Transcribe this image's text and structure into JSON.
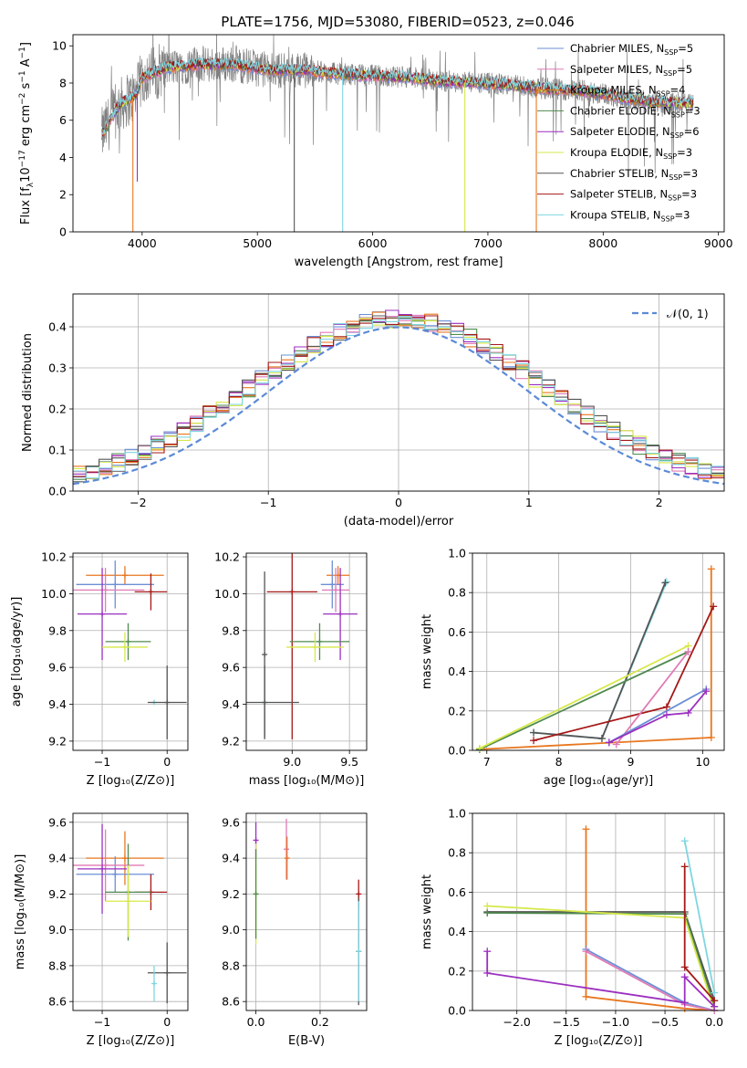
{
  "figure": {
    "title": "PLATE=1756, MJD=53080, FIBERID=0523, z=0.046"
  },
  "colors": {
    "Chabrier MILES": "#6b8fd6",
    "Salpeter MILES": "#e07bb5",
    "Kroupa MILES": "#e8771f",
    "Chabrier ELODIE": "#4f8a4f",
    "Salpeter ELODIE": "#9b2fc0",
    "Kroupa ELODIE": "#d6e84a",
    "Chabrier STELIB": "#555555",
    "Salpeter STELIB": "#a51818",
    "Kroupa STELIB": "#7ed6e0"
  },
  "chart_data": [
    {
      "id": "spectrum",
      "type": "line",
      "title": "PLATE=1756, MJD=53080, FIBERID=0523, z=0.046",
      "xlabel": "wavelength [Angstrom, rest frame]",
      "ylabel_main": "Flux [f",
      "ylabel_sub": "λ",
      "ylabel_rest": "10",
      "ylabel_sup1": "−17",
      "ylabel_tail": " erg cm",
      "ylabel_sup2": "−2",
      "ylabel_tail2": " s",
      "ylabel_sup3": "−1",
      "ylabel_tail3": " A",
      "ylabel_sup4": "−1",
      "ylabel_end": "]",
      "xlim": [
        3400,
        9050
      ],
      "ylim": [
        0,
        10.6
      ],
      "xticks": [
        4000,
        5000,
        6000,
        7000,
        8000,
        9000
      ],
      "yticks": [
        0,
        2,
        4,
        6,
        8,
        10
      ],
      "legend_position": "upper-right",
      "legend": [
        {
          "name": "Chabrier MILES",
          "n": "5"
        },
        {
          "name": "Salpeter MILES",
          "n": "5"
        },
        {
          "name": "Kroupa MILES",
          "n": "4"
        },
        {
          "name": "Chabrier ELODIE",
          "n": "3"
        },
        {
          "name": "Salpeter ELODIE",
          "n": "6"
        },
        {
          "name": "Kroupa ELODIE",
          "n": "3"
        },
        {
          "name": "Chabrier STELIB",
          "n": "3"
        },
        {
          "name": "Salpeter STELIB",
          "n": "3"
        },
        {
          "name": "Kroupa STELIB",
          "n": "3"
        }
      ],
      "legend_suffix": "SSP",
      "data_range": [
        3650,
        8780
      ],
      "continuum": [
        [
          3650,
          5.2
        ],
        [
          3800,
          6.8
        ],
        [
          3950,
          7.4
        ],
        [
          4000,
          8.3
        ],
        [
          4200,
          8.8
        ],
        [
          4500,
          9.0
        ],
        [
          4800,
          9.0
        ],
        [
          5100,
          8.7
        ],
        [
          5400,
          8.7
        ],
        [
          5700,
          8.5
        ],
        [
          6000,
          8.4
        ],
        [
          6300,
          8.3
        ],
        [
          6600,
          8.1
        ],
        [
          6900,
          8.0
        ],
        [
          7200,
          7.9
        ],
        [
          7500,
          7.7
        ],
        [
          7800,
          7.6
        ],
        [
          8100,
          7.3
        ],
        [
          8400,
          7.0
        ],
        [
          8780,
          6.9
        ]
      ],
      "drops": [
        {
          "series": "Salpeter ELODIE",
          "x": 3958,
          "to": 2.7
        },
        {
          "series": "Kroupa MILES",
          "x": 3920,
          "to": 0
        },
        {
          "series": "Kroupa STELIB",
          "x": 5740,
          "to": 0
        },
        {
          "series": "Chabrier STELIB",
          "x": 5320,
          "to": 0
        },
        {
          "series": "Kroupa ELODIE",
          "x": 6800,
          "to": 0
        },
        {
          "series": "Kroupa MILES",
          "x": 7420,
          "to": 0
        }
      ]
    },
    {
      "id": "residuals",
      "type": "line",
      "xlabel": "(data-model)/error",
      "ylabel": "Normed distribution",
      "xlim": [
        -2.5,
        2.5
      ],
      "ylim": [
        0,
        0.48
      ],
      "xticks": [
        -2,
        -1,
        0,
        1,
        2
      ],
      "yticks": [
        0.0,
        0.1,
        0.2,
        0.3,
        0.4
      ],
      "grid": true,
      "legend_position": "upper-right",
      "reference_curve": {
        "name": "𝒩(0, 1)",
        "mean": 0,
        "sigma": 1,
        "color": "#5b8ad6"
      },
      "bin_width": 0.1
    },
    {
      "id": "age-vs-Z",
      "type": "scatter",
      "xlabel": "Z [log10(Z/Z⊙)]",
      "ylabel": "age  [log10(age/yr)]",
      "xlim": [
        -1.45,
        0.32
      ],
      "ylim": [
        9.15,
        10.22
      ],
      "xticks": [
        -1,
        0
      ],
      "yticks": [
        9.2,
        9.4,
        9.6,
        9.8,
        10.0,
        10.2
      ],
      "grid": true,
      "points": [
        {
          "series": "Kroupa MILES",
          "x": -0.65,
          "xerr": 0.6,
          "y": 10.1,
          "yerr": 0.05
        },
        {
          "series": "Chabrier MILES",
          "x": -0.8,
          "xerr": 0.6,
          "y": 10.05,
          "yerr": 0.13
        },
        {
          "series": "Salpeter MILES",
          "x": -0.95,
          "xerr": 0.6,
          "y": 10.02,
          "yerr": 0.12
        },
        {
          "series": "Salpeter STELIB",
          "x": -0.25,
          "xerr": 0.25,
          "y": 10.01,
          "yerr": 0.1
        },
        {
          "series": "Salpeter ELODIE",
          "x": -1.0,
          "xerr": 0.38,
          "y": 9.89,
          "yerr": 0.25
        },
        {
          "series": "Chabrier ELODIE",
          "x": -0.6,
          "xerr": 0.35,
          "y": 9.74,
          "yerr": 0.1
        },
        {
          "series": "Kroupa ELODIE",
          "x": -0.65,
          "xerr": 0.35,
          "y": 9.71,
          "yerr": 0.08
        },
        {
          "series": "Kroupa STELIB",
          "x": -0.2,
          "xerr": 0.0,
          "y": 9.41,
          "yerr": 0.0
        },
        {
          "series": "Chabrier STELIB",
          "x": 0.0,
          "xerr": 0.3,
          "y": 9.41,
          "yerr": 0.2
        }
      ]
    },
    {
      "id": "age-vs-mass",
      "type": "scatter",
      "xlabel": "mass [log10(M/M⊙)]",
      "ylabel": "",
      "xlim": [
        8.6,
        9.65
      ],
      "ylim": [
        9.15,
        10.22
      ],
      "xticks": [
        9.0,
        9.5
      ],
      "yticks": [
        9.2,
        9.4,
        9.6,
        9.8,
        10.0,
        10.2
      ],
      "grid": true,
      "points": [
        {
          "series": "Kroupa MILES",
          "x": 9.4,
          "xerr": 0.1,
          "y": 10.1,
          "yerr": 0.05
        },
        {
          "series": "Chabrier MILES",
          "x": 9.35,
          "xerr": 0.1,
          "y": 10.05,
          "yerr": 0.13
        },
        {
          "series": "Salpeter MILES",
          "x": 9.38,
          "xerr": 0.12,
          "y": 10.02,
          "yerr": 0.12
        },
        {
          "series": "Salpeter STELIB",
          "x": 9.0,
          "xerr": 0.22,
          "y": 10.01,
          "yerr": 0.8
        },
        {
          "series": "Salpeter ELODIE",
          "x": 9.42,
          "xerr": 0.15,
          "y": 9.89,
          "yerr": 0.25
        },
        {
          "series": "Chabrier ELODIE",
          "x": 9.24,
          "xerr": 0.26,
          "y": 9.74,
          "yerr": 0.1
        },
        {
          "series": "Kroupa ELODIE",
          "x": 9.2,
          "xerr": 0.25,
          "y": 9.71,
          "yerr": 0.08
        },
        {
          "series": "Kroupa STELIB",
          "x": 8.76,
          "xerr": 0.0,
          "y": 9.41,
          "yerr": 0.0
        },
        {
          "series": "Chabrier STELIB",
          "x": 8.76,
          "xerr": 0.3,
          "y": 9.41,
          "yerr": 0.2
        },
        {
          "series": "Chabrier STELIB",
          "x": 8.76,
          "xerr": 0.0,
          "y": 9.67,
          "yerr": 0.45
        }
      ]
    },
    {
      "id": "massweight-vs-age",
      "type": "line",
      "xlabel": "age  [log10(age/yr)]",
      "ylabel": "mass weight",
      "xlim": [
        6.8,
        10.3
      ],
      "ylim": [
        0,
        1.0
      ],
      "xticks": [
        7,
        8,
        9,
        10
      ],
      "yticks": [
        0.0,
        0.2,
        0.4,
        0.6,
        0.8,
        1.0
      ],
      "grid": true,
      "series": [
        {
          "name": "Kroupa MILES",
          "points": [
            [
              6.9,
              0.005
            ],
            [
              10.12,
              0.065
            ],
            [
              10.12,
              0.92
            ]
          ]
        },
        {
          "name": "Kroupa STELIB",
          "points": [
            [
              7.65,
              0.09
            ],
            [
              8.6,
              0.06
            ],
            [
              9.5,
              0.855
            ]
          ]
        },
        {
          "name": "Chabrier STELIB",
          "points": [
            [
              7.65,
              0.09
            ],
            [
              8.6,
              0.06
            ],
            [
              9.48,
              0.85
            ]
          ]
        },
        {
          "name": "Salpeter STELIB",
          "points": [
            [
              7.65,
              0.05
            ],
            [
              9.5,
              0.22
            ],
            [
              10.15,
              0.73
            ]
          ]
        },
        {
          "name": "Chabrier ELODIE",
          "points": [
            [
              6.9,
              0.005
            ],
            [
              9.8,
              0.5
            ]
          ]
        },
        {
          "name": "Kroupa ELODIE",
          "points": [
            [
              6.9,
              0.01
            ],
            [
              9.8,
              0.53
            ]
          ]
        },
        {
          "name": "Salpeter MILES",
          "points": [
            [
              8.8,
              0.03
            ],
            [
              9.8,
              0.5
            ]
          ]
        },
        {
          "name": "Chabrier MILES",
          "points": [
            [
              8.7,
              0.04
            ],
            [
              10.05,
              0.31
            ]
          ]
        },
        {
          "name": "Salpeter ELODIE",
          "points": [
            [
              8.7,
              0.04
            ],
            [
              9.5,
              0.18
            ],
            [
              9.8,
              0.19
            ],
            [
              10.05,
              0.3
            ]
          ]
        }
      ]
    },
    {
      "id": "mass-vs-Z",
      "type": "scatter",
      "xlabel": "Z [log10(Z/Z⊙)]",
      "ylabel": "mass [log10(M/M⊙)]",
      "xlim": [
        -1.45,
        0.32
      ],
      "ylim": [
        8.55,
        9.65
      ],
      "xticks": [
        -1,
        0
      ],
      "yticks": [
        8.6,
        8.8,
        9.0,
        9.2,
        9.4,
        9.6
      ],
      "grid": true,
      "points": [
        {
          "series": "Kroupa MILES",
          "x": -0.65,
          "xerr": 0.6,
          "y": 9.4,
          "yerr": 0.15
        },
        {
          "series": "Chabrier MILES",
          "x": -0.8,
          "xerr": 0.6,
          "y": 9.31,
          "yerr": 0.1
        },
        {
          "series": "Salpeter MILES",
          "x": -0.95,
          "xerr": 0.6,
          "y": 9.36,
          "yerr": 0.2
        },
        {
          "series": "Salpeter ELODIE",
          "x": -1.0,
          "xerr": 0.38,
          "y": 9.34,
          "yerr": 0.25
        },
        {
          "series": "Salpeter STELIB",
          "x": -0.25,
          "xerr": 0.25,
          "y": 9.21,
          "yerr": 0.1
        },
        {
          "series": "Chabrier ELODIE",
          "x": -0.6,
          "xerr": 0.35,
          "y": 9.21,
          "yerr": 0.27
        },
        {
          "series": "Kroupa ELODIE",
          "x": -0.6,
          "xerr": 0.35,
          "y": 9.16,
          "yerr": 0.2
        },
        {
          "series": "Chabrier STELIB",
          "x": 0.0,
          "xerr": 0.3,
          "y": 8.76,
          "yerr": 0.17
        },
        {
          "series": "Kroupa STELIB",
          "x": -0.2,
          "xerr": 0.0,
          "y": 8.7,
          "yerr": 0.1
        }
      ]
    },
    {
      "id": "mass-vs-EBV",
      "type": "scatter",
      "xlabel": "E(B-V)",
      "ylabel": "",
      "xlim": [
        -0.03,
        0.345
      ],
      "ylim": [
        8.55,
        9.65
      ],
      "xticks": [
        0.0,
        0.2
      ],
      "yticks": [
        8.6,
        8.8,
        9.0,
        9.2,
        9.4,
        9.6
      ],
      "grid": true,
      "points": [
        {
          "series": "Salpeter ELODIE",
          "x": 0.0,
          "xerr": 0.0,
          "y": 9.5,
          "yerr": 0.1
        },
        {
          "series": "Kroupa ELODIE",
          "x": 0.0,
          "xerr": 0.0,
          "y": 9.2,
          "yerr": 0.28
        },
        {
          "series": "Chabrier ELODIE",
          "x": 0.0,
          "xerr": 0.0,
          "y": 9.2,
          "yerr": 0.25
        },
        {
          "series": "Salpeter MILES",
          "x": 0.095,
          "xerr": 0.0,
          "y": 9.45,
          "yerr": 0.17
        },
        {
          "series": "Kroupa MILES",
          "x": 0.097,
          "xerr": 0.0,
          "y": 9.4,
          "yerr": 0.12
        },
        {
          "series": "Salpeter STELIB",
          "x": 0.32,
          "xerr": 0.0,
          "y": 9.2,
          "yerr": 0.08
        },
        {
          "series": "Chabrier STELIB",
          "x": 0.32,
          "xerr": 0.0,
          "y": 8.88,
          "yerr": 0.3
        },
        {
          "series": "Kroupa STELIB",
          "x": 0.32,
          "xerr": 0.0,
          "y": 8.88,
          "yerr": 0.28
        }
      ]
    },
    {
      "id": "massweight-vs-Z",
      "type": "line",
      "xlabel": "Z [log10(Z/Z⊙)]",
      "ylabel": "mass weight",
      "xlim": [
        -2.45,
        0.1
      ],
      "ylim": [
        0,
        1.0
      ],
      "xticks": [
        -2.0,
        -1.5,
        -1.0,
        -0.5,
        0.0
      ],
      "yticks": [
        0.0,
        0.2,
        0.4,
        0.6,
        0.8,
        1.0
      ],
      "grid": true,
      "series": [
        {
          "name": "Kroupa MILES",
          "points": [
            [
              -1.3,
              0.92
            ],
            [
              -1.3,
              0.07
            ],
            [
              -0.3,
              0.01
            ],
            [
              0.0,
              0.0
            ]
          ]
        },
        {
          "name": "Chabrier STELIB",
          "points": [
            [
              -2.3,
              0.5
            ],
            [
              -0.3,
              0.5
            ],
            [
              0.0,
              0.05
            ]
          ]
        },
        {
          "name": "Chabrier ELODIE",
          "points": [
            [
              -2.3,
              0.495
            ],
            [
              -0.3,
              0.49
            ],
            [
              0.0,
              0.02
            ]
          ]
        },
        {
          "name": "Kroupa ELODIE",
          "points": [
            [
              -2.3,
              0.53
            ],
            [
              -0.3,
              0.47
            ],
            [
              0.0,
              0.0
            ]
          ]
        },
        {
          "name": "Salpeter STELIB",
          "points": [
            [
              -0.3,
              0.73
            ],
            [
              -0.3,
              0.22
            ],
            [
              0.0,
              0.05
            ]
          ]
        },
        {
          "name": "Kroupa STELIB",
          "points": [
            [
              -0.3,
              0.86
            ],
            [
              0.0,
              0.09
            ]
          ]
        },
        {
          "name": "Chabrier MILES",
          "points": [
            [
              -1.3,
              0.31
            ],
            [
              -0.3,
              0.04
            ],
            [
              0.0,
              0.0
            ]
          ]
        },
        {
          "name": "Salpeter MILES",
          "points": [
            [
              -1.3,
              0.3
            ],
            [
              -0.3,
              0.03
            ],
            [
              0.0,
              0.0
            ]
          ]
        },
        {
          "name": "Salpeter ELODIE",
          "points": [
            [
              -2.3,
              0.3
            ],
            [
              -2.3,
              0.19
            ],
            [
              -0.3,
              0.04
            ],
            [
              -0.3,
              0.17
            ],
            [
              0.0,
              0.02
            ]
          ]
        }
      ]
    }
  ]
}
